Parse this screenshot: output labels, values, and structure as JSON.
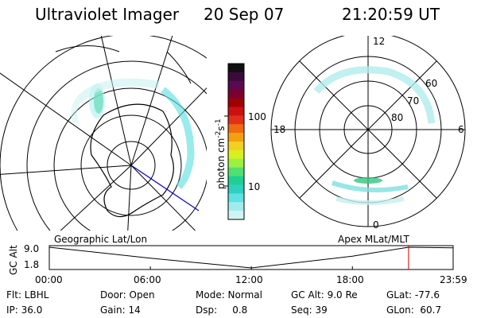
{
  "header": {
    "instrument": "Ultraviolet Imager",
    "date": "20 Sep 07",
    "time": "21:20:59 UT"
  },
  "left_map": {
    "label": "Geographic Lat/Lon"
  },
  "right_map": {
    "label": "Apex MLat/MLT",
    "mlt_labels": [
      "12",
      "18",
      "6",
      "0"
    ],
    "lat_labels": [
      "60",
      "70",
      "80"
    ]
  },
  "colorbar": {
    "unit_label": "photon cm",
    "unit_sup1": "-2",
    "unit_mid": "s",
    "unit_sup2": "-1",
    "ticks": [
      "100",
      "10"
    ],
    "colors": [
      "#101010",
      "#3a0a3a",
      "#5a0a50",
      "#7a0030",
      "#a00000",
      "#cc1010",
      "#e03018",
      "#f06a10",
      "#f2a010",
      "#f0d020",
      "#d8f020",
      "#9ef040",
      "#50e070",
      "#20d090",
      "#30d0c0",
      "#60e0e0",
      "#a0ecec",
      "#d0f4f4"
    ]
  },
  "timeline": {
    "y_axis_label": "GC Alt",
    "y_ticks": [
      "9.0",
      "1.8"
    ],
    "x_ticks": [
      "00:00",
      "06:00",
      "12:00",
      "18:00",
      "23:59"
    ]
  },
  "footer": {
    "row1": [
      {
        "text": "Flt: LBHL"
      },
      {
        "text": "Door: Open"
      },
      {
        "text": "Mode: Normal"
      },
      {
        "text": "GC Alt: 9.0 Re"
      },
      {
        "text": "GLat: -77.6"
      }
    ],
    "row2": [
      {
        "text": "IP: 36.0"
      },
      {
        "text": "Gain: 14"
      },
      {
        "text": "Dsp:     0.8"
      },
      {
        "text": "Seq: 39"
      },
      {
        "text": "GLon:  60.7"
      }
    ]
  },
  "chart_data": {
    "type": "line",
    "title": "",
    "xlabel": "",
    "ylabel": "GC Alt",
    "xlim": [
      "00:00",
      "23:59"
    ],
    "ylim": [
      1.8,
      9.0
    ],
    "x": [
      "00:00",
      "06:00",
      "12:00",
      "18:00",
      "21:20",
      "23:59"
    ],
    "series": [
      {
        "values": [
          9.0,
          5.2,
          1.8,
          5.9,
          9.0,
          8.8
        ]
      }
    ],
    "current_time_marker": "21:20:59"
  }
}
